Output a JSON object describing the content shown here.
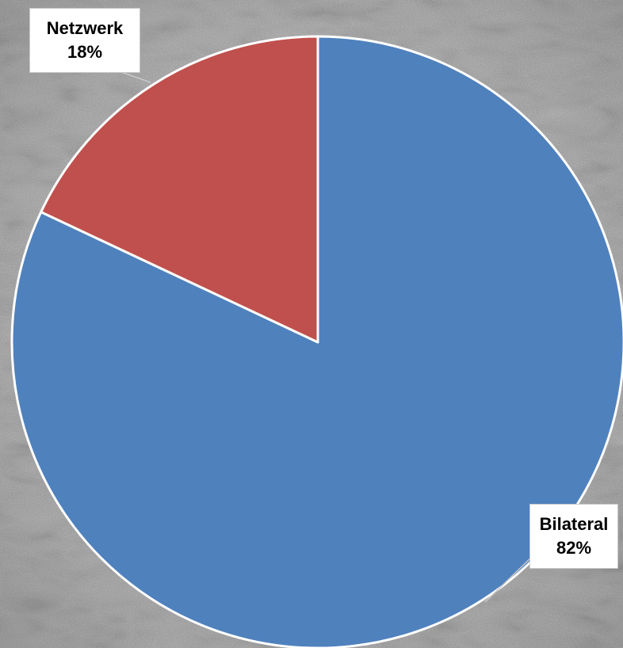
{
  "chart_data": {
    "type": "pie",
    "title": "",
    "start_angle_deg": 0,
    "direction": "clockwise",
    "slices": [
      {
        "label": "Bilateral",
        "value": 82,
        "percent_text": "82%",
        "color": "#4f81bd"
      },
      {
        "label": "Netzwerk",
        "value": 18,
        "percent_text": "18%",
        "color": "#c0504d"
      }
    ],
    "legend": "none",
    "data_labels": "outside-with-leader"
  },
  "background": {
    "texture": "grey-grunge",
    "color": "#9c9c9c"
  }
}
